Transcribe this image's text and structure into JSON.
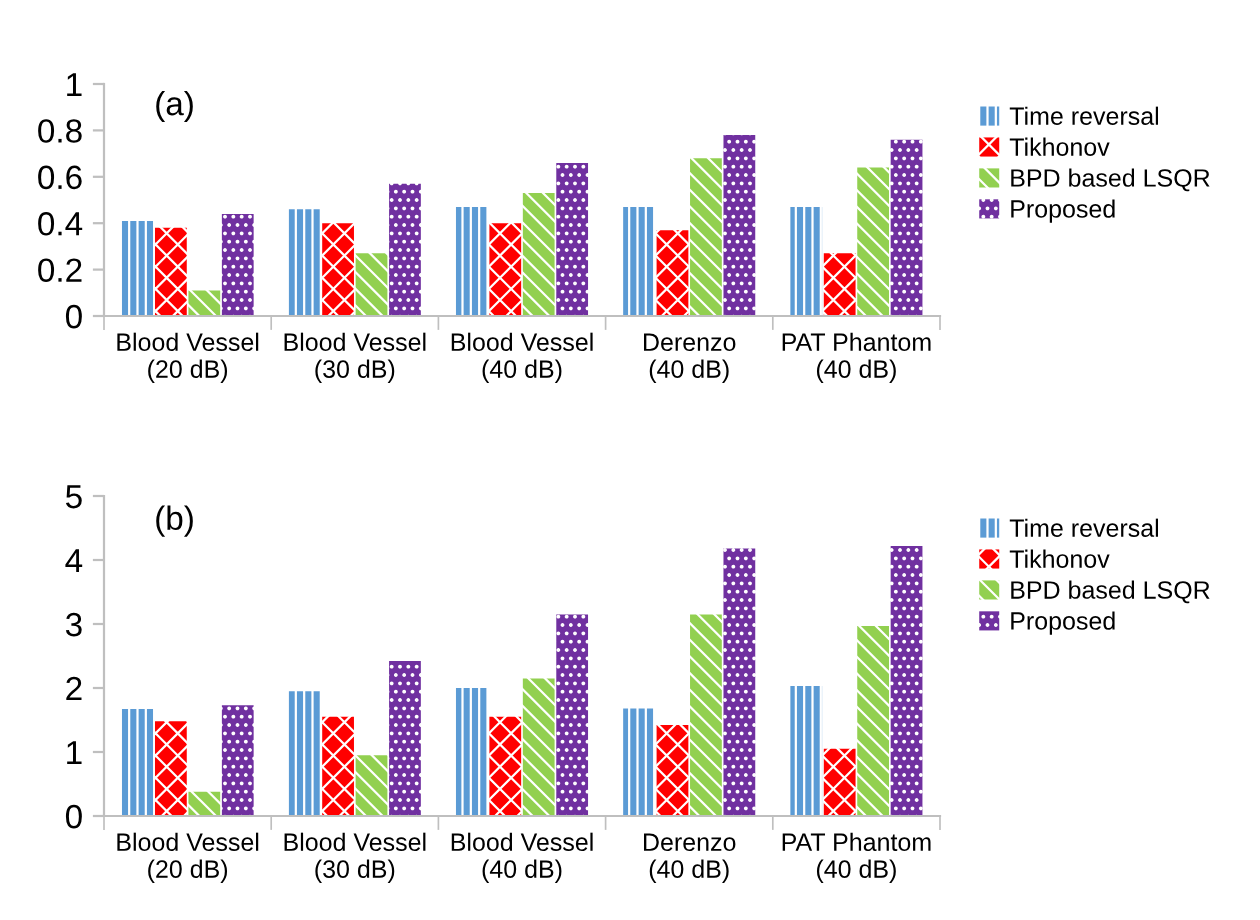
{
  "chart_data": [
    {
      "type": "bar",
      "annotations": [
        "(a)"
      ],
      "categories": [
        "Blood Vessel\n(20 dB)",
        "Blood Vessel\n(30 dB)",
        "Blood Vessel\n(40 dB)",
        "Derenzo\n(40 dB)",
        "PAT Phantom\n(40 dB)"
      ],
      "series": [
        {
          "name": "Time reversal",
          "color": "#5b9bd5",
          "values": [
            0.41,
            0.46,
            0.47,
            0.47,
            0.47
          ]
        },
        {
          "name": "Tikhonov",
          "color": "#ff0000",
          "values": [
            0.38,
            0.4,
            0.4,
            0.37,
            0.27
          ]
        },
        {
          "name": "BPD based LSQR",
          "color": "#92d050",
          "values": [
            0.11,
            0.27,
            0.53,
            0.68,
            0.64
          ]
        },
        {
          "name": "Proposed",
          "color": "#7030a0",
          "values": [
            0.44,
            0.57,
            0.66,
            0.78,
            0.76
          ]
        }
      ],
      "ylim": [
        0,
        1
      ],
      "yticks": [
        0,
        {
          "value": 0.2,
          "label": "0.2"
        },
        {
          "value": 0.4,
          "label": "0.4"
        },
        {
          "value": 0.6,
          "label": "0.6"
        },
        {
          "value": 0.8,
          "label": "0.8"
        },
        1
      ],
      "grid": false,
      "legend": "right"
    },
    {
      "type": "bar",
      "annotations": [
        "(b)"
      ],
      "categories": [
        "Blood Vessel\n(20 dB)",
        "Blood Vessel\n(30 dB)",
        "Blood Vessel\n(40 dB)",
        "Derenzo\n(40 dB)",
        "PAT Phantom\n(40 dB)"
      ],
      "series": [
        {
          "name": "Time reversal",
          "color": "#5b9bd5",
          "values": [
            1.67,
            1.95,
            2.0,
            1.68,
            2.03
          ]
        },
        {
          "name": "Tikhonov",
          "color": "#ff0000",
          "values": [
            1.48,
            1.55,
            1.55,
            1.42,
            1.05
          ]
        },
        {
          "name": "BPD based LSQR",
          "color": "#92d050",
          "values": [
            0.38,
            0.95,
            2.15,
            3.15,
            2.97
          ]
        },
        {
          "name": "Proposed",
          "color": "#7030a0",
          "values": [
            1.73,
            2.42,
            3.15,
            4.18,
            4.22
          ]
        }
      ],
      "ylim": [
        0,
        5
      ],
      "yticks": [
        0,
        1,
        2,
        3,
        4,
        5
      ],
      "grid": false,
      "legend": "right"
    }
  ]
}
